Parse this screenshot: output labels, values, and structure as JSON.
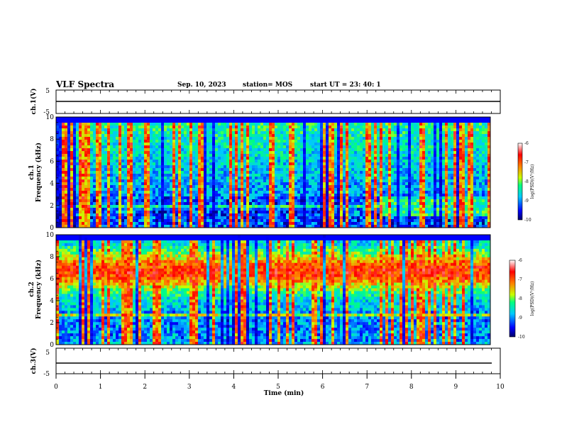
{
  "header": {
    "title": "VLF Spectra",
    "date": "Sep. 10, 2023",
    "station": "station= MOS",
    "start": "start  UT =   23: 40: 1"
  },
  "chart_data": [
    {
      "type": "line",
      "panel": "ch1-waveform",
      "ylabel": "ch.1(V)",
      "yticks": [
        "5",
        "-5"
      ],
      "ylim": [
        -5,
        5
      ],
      "xlim": [
        0,
        10
      ],
      "series": [
        {
          "x": [
            0,
            10
          ],
          "values": [
            0,
            0
          ]
        }
      ]
    },
    {
      "type": "heatmap",
      "panel": "ch1-spectrogram",
      "ylabel": "ch.1\nFrequency (kHz)",
      "ylabel_line1": "ch.1",
      "ylabel_line2": "Frequency (kHz)",
      "yticks": [
        "0",
        "2",
        "4",
        "6",
        "8",
        "10"
      ],
      "ylim": [
        0,
        10
      ],
      "xlim": [
        0,
        10
      ],
      "colorbar": {
        "label": "log(PSD)(V²/Hz)",
        "ticks": [
          "-6",
          "-7",
          "-8",
          "-9",
          "-10"
        ],
        "range": [
          -10,
          -6
        ]
      }
    },
    {
      "type": "heatmap",
      "panel": "ch2-spectrogram",
      "ylabel_line1": "ch.2",
      "ylabel_line2": "Frequency (kHz)",
      "yticks": [
        "0",
        "2",
        "4",
        "6",
        "8",
        "10"
      ],
      "ylim": [
        0,
        10
      ],
      "xlim": [
        0,
        10
      ],
      "colorbar": {
        "label": "log(PSD)(V²/Hz)",
        "ticks": [
          "-6",
          "-7",
          "-8",
          "-9",
          "-10"
        ],
        "range": [
          -10,
          -6
        ]
      }
    },
    {
      "type": "line",
      "panel": "ch3-waveform",
      "ylabel": "ch.3(V)",
      "yticks": [
        "5",
        "-5"
      ],
      "ylim": [
        -5,
        5
      ],
      "xlim": [
        0,
        10
      ],
      "series": [
        {
          "x": [
            0,
            10
          ],
          "values": [
            0,
            0
          ]
        }
      ]
    }
  ],
  "xaxis": {
    "label": "Time (min)",
    "ticks": [
      "0",
      "1",
      "2",
      "3",
      "4",
      "5",
      "6",
      "7",
      "8",
      "9",
      "10"
    ]
  },
  "colors": {
    "colormap": [
      "#000066",
      "#0000ff",
      "#00c8ff",
      "#00ff80",
      "#c8ff00",
      "#ff8000",
      "#ff0000",
      "#ffffff"
    ]
  }
}
